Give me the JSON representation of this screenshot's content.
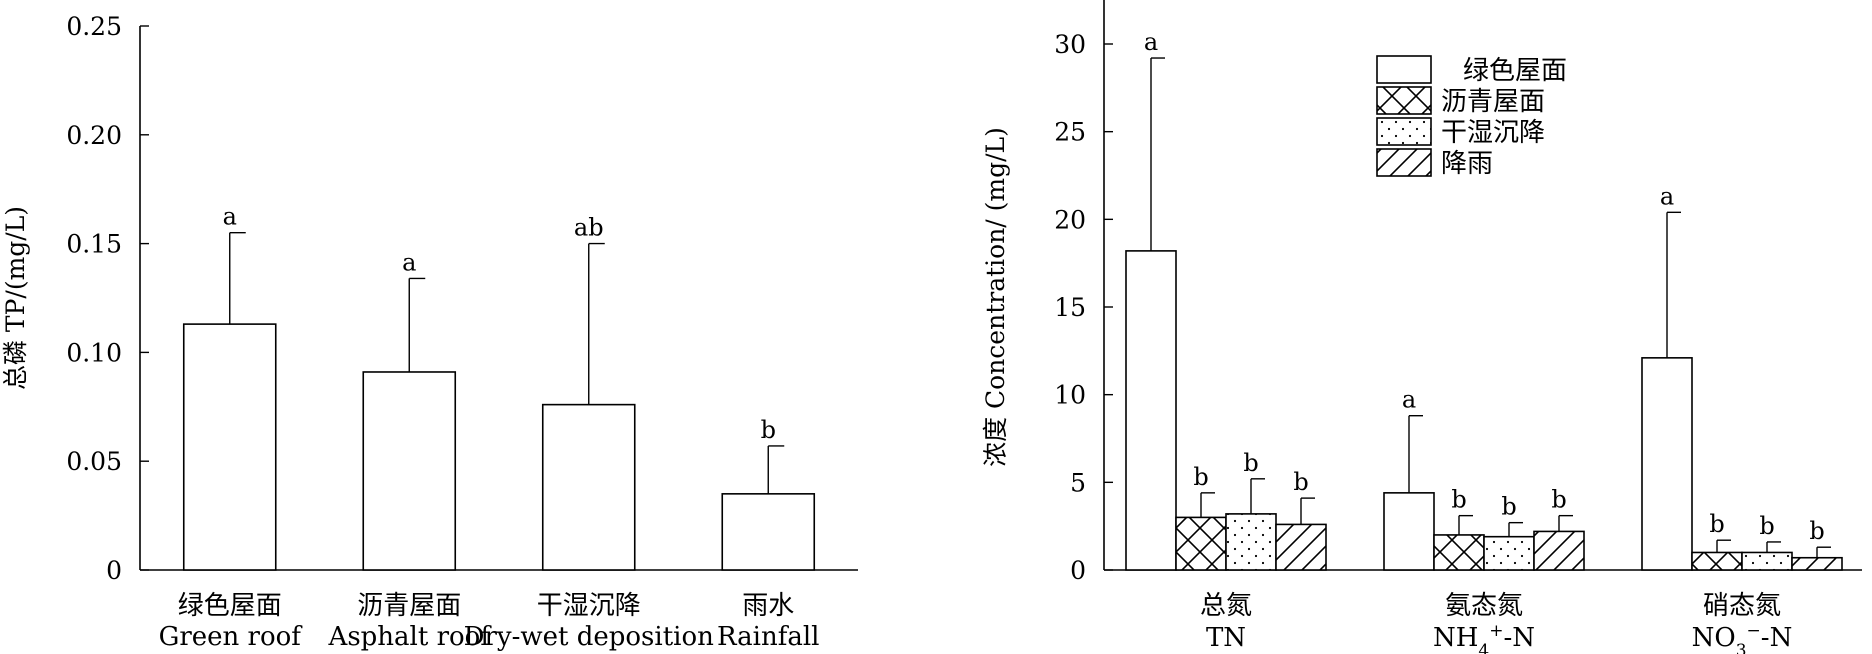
{
  "chart_data": [
    {
      "type": "bar",
      "ylabel": "总磷 TP/(mg/L)",
      "ylim": [
        0,
        0.25
      ],
      "yticks": [
        0,
        0.05,
        0.1,
        0.15,
        0.2,
        0.25
      ],
      "ytick_labels": [
        "0",
        "0.05",
        "0.10",
        "0.15",
        "0.20",
        "0.25"
      ],
      "categories": [
        {
          "zh": "绿色屋面",
          "en": "Green roof"
        },
        {
          "zh": "沥青屋面",
          "en": "Asphalt  roof"
        },
        {
          "zh": "干湿沉降",
          "en": "Dry-wet deposition"
        },
        {
          "zh": "雨水",
          "en": "Rainfall"
        }
      ],
      "values": [
        0.113,
        0.091,
        0.076,
        0.035
      ],
      "errors": [
        0.042,
        0.043,
        0.074,
        0.022
      ],
      "significance": [
        "a",
        "a",
        "ab",
        "b"
      ]
    },
    {
      "type": "bar",
      "ylabel": "浓度 Concentration/ (mg/L)",
      "ylim": [
        0,
        32
      ],
      "yticks": [
        0,
        5,
        10,
        15,
        20,
        25,
        30
      ],
      "ytick_labels": [
        "0",
        "5",
        "10",
        "15",
        "20",
        "25",
        "30"
      ],
      "groups": [
        {
          "zh": "总氮",
          "en": "TN"
        },
        {
          "zh": "氨态氮",
          "en": "NH4+-N"
        },
        {
          "zh": "硝态氮",
          "en": "NO3−-N"
        }
      ],
      "series": [
        {
          "name": "绿色屋面",
          "pattern": "none",
          "values": [
            18.2,
            4.4,
            12.1
          ],
          "errors": [
            11.0,
            4.4,
            8.3
          ],
          "significance": [
            "a",
            "a",
            "a"
          ]
        },
        {
          "name": "沥青屋面",
          "pattern": "crosshatch",
          "values": [
            3.0,
            2.0,
            1.0
          ],
          "errors": [
            1.4,
            1.1,
            0.7
          ],
          "significance": [
            "b",
            "b",
            "b"
          ]
        },
        {
          "name": "干湿沉降",
          "pattern": "dots",
          "values": [
            3.2,
            1.9,
            1.0
          ],
          "errors": [
            2.0,
            0.8,
            0.6
          ],
          "significance": [
            "b",
            "b",
            "b"
          ]
        },
        {
          "name": "降雨",
          "pattern": "diagonal",
          "values": [
            2.6,
            2.2,
            0.7
          ],
          "errors": [
            1.5,
            0.9,
            0.6
          ],
          "significance": [
            "b",
            "b",
            "b"
          ]
        }
      ],
      "legend_position": "top-center"
    }
  ]
}
